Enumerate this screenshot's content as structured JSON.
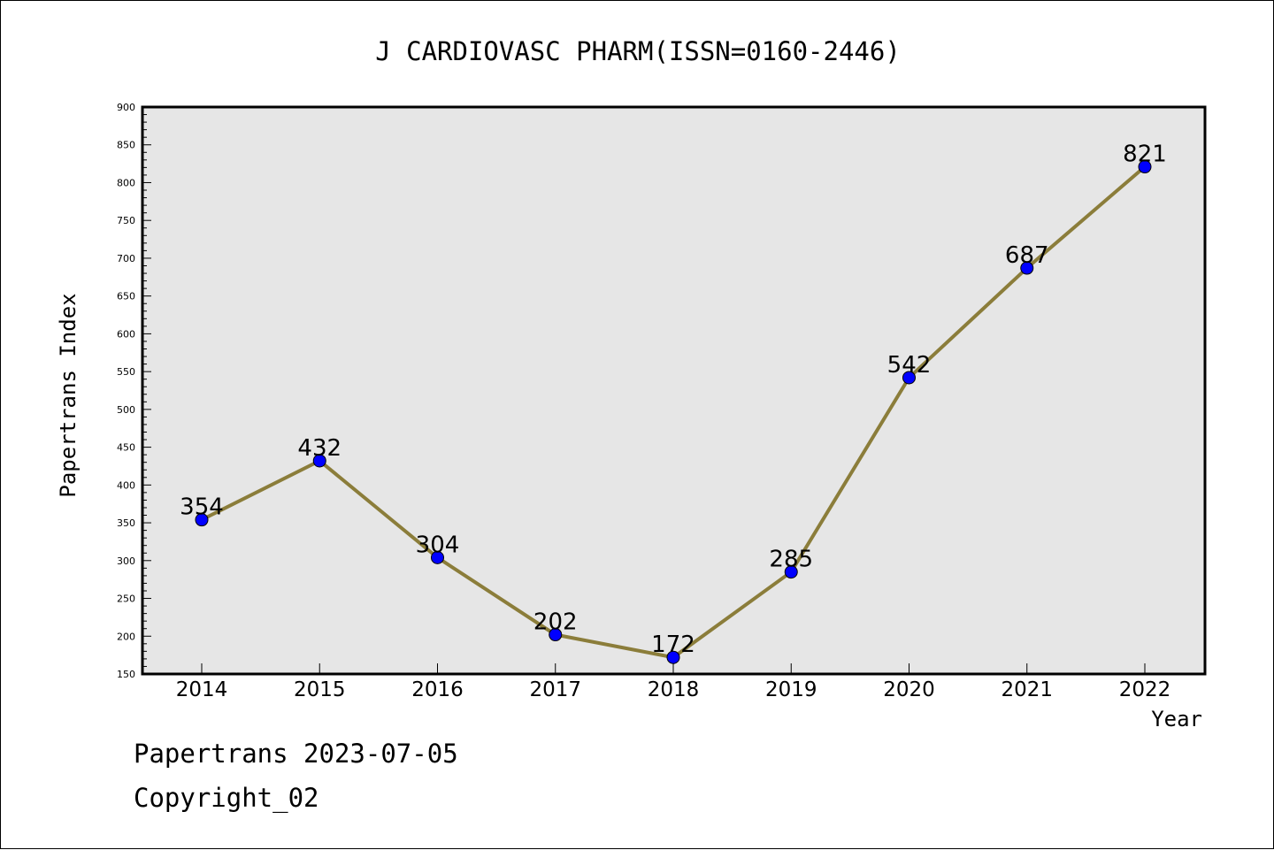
{
  "chart_data": {
    "type": "line",
    "title": "J CARDIOVASC PHARM(ISSN=0160-2446)",
    "xlabel": "Year",
    "ylabel": "Papertrans Index",
    "categories": [
      "2014",
      "2015",
      "2016",
      "2017",
      "2018",
      "2019",
      "2020",
      "2021",
      "2022"
    ],
    "values": [
      354,
      432,
      304,
      202,
      172,
      285,
      542,
      687,
      821
    ],
    "data_labels": [
      "354",
      "432",
      "304",
      "202",
      "172",
      "285",
      "542",
      "687",
      "821"
    ],
    "ylim": [
      150,
      900
    ],
    "yticks": [
      150,
      200,
      250,
      300,
      350,
      400,
      450,
      500,
      550,
      600,
      650,
      700,
      750,
      800,
      850,
      900
    ],
    "grid": false,
    "colors": {
      "line": "#8B7D3A",
      "marker": "#0000FF",
      "plot_background": "#E6E6E6"
    }
  },
  "footer": {
    "line1": "Papertrans 2023-07-05",
    "line2": "Copyright_02"
  }
}
